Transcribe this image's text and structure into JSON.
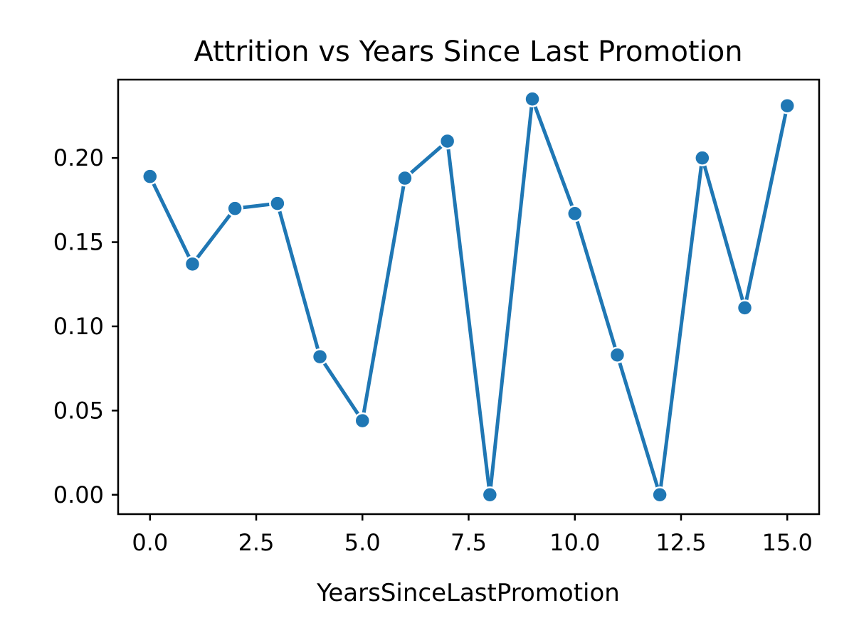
{
  "chart_data": {
    "type": "line",
    "title": "Attrition vs Years Since Last Promotion",
    "xlabel": "YearsSinceLastPromotion",
    "ylabel": "",
    "x": [
      0,
      1,
      2,
      3,
      4,
      5,
      6,
      7,
      8,
      9,
      10,
      11,
      12,
      13,
      14,
      15
    ],
    "series": [
      {
        "values": [
          0.189,
          0.137,
          0.17,
          0.173,
          0.082,
          0.044,
          0.188,
          0.21,
          0.0,
          0.235,
          0.167,
          0.083,
          0.0,
          0.2,
          0.111,
          0.231
        ]
      }
    ],
    "xlim": [
      -0.75,
      15.75
    ],
    "ylim": [
      -0.0115,
      0.2465
    ],
    "xticks": [
      "0.0",
      "2.5",
      "5.0",
      "7.5",
      "10.0",
      "12.5",
      "15.0"
    ],
    "yticks": [
      "0.00",
      "0.05",
      "0.10",
      "0.15",
      "0.20"
    ],
    "grid": false,
    "markers": true,
    "color": "#1f77b4"
  }
}
